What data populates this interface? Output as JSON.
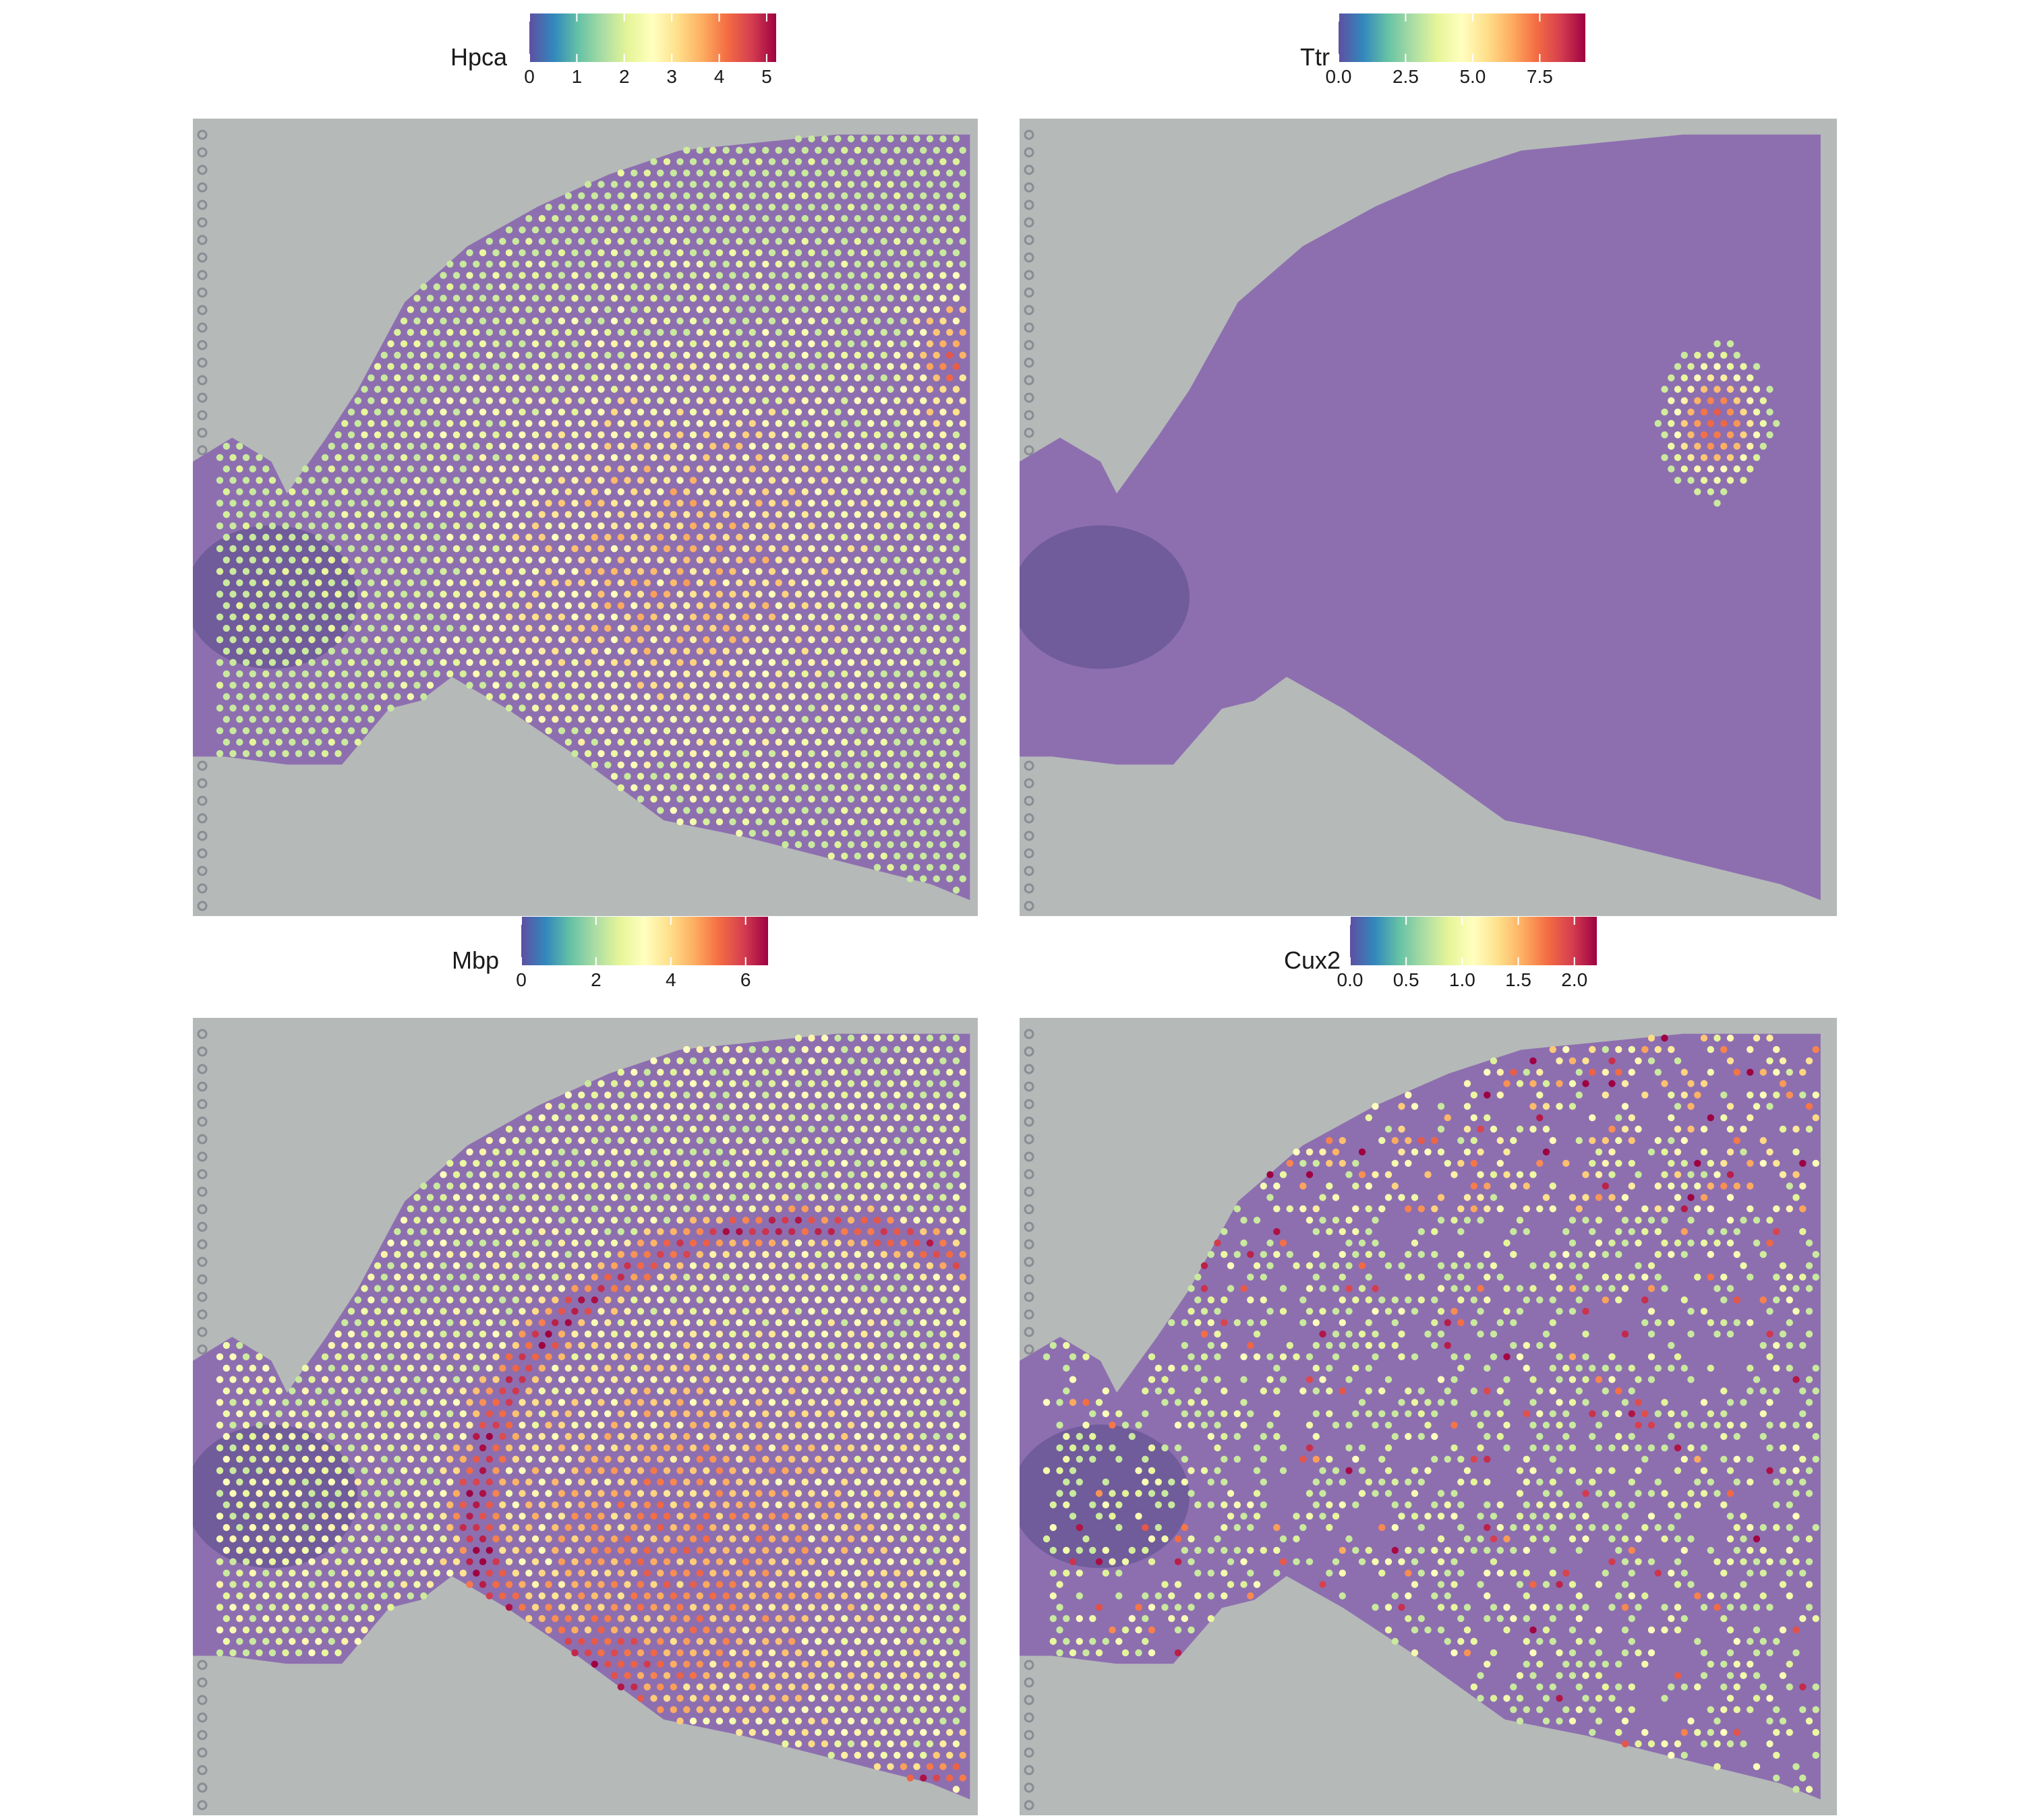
{
  "palette": [
    "#5E4FA2",
    "#3288BD",
    "#66C2A5",
    "#ABDDA4",
    "#E6F598",
    "#FFFFBF",
    "#FEE08B",
    "#FDAE61",
    "#F46D43",
    "#D53E4F",
    "#9E0142"
  ],
  "colors": {
    "slide": "#b5b9b8",
    "tissue": "#8d6fb0",
    "tissue_dark": "#5a4a8a",
    "fiducial": "#8a8c94"
  },
  "chart_data": [
    {
      "type": "spatial-scatter",
      "gene": "Hpca",
      "legend_title": "Hpca",
      "ticks": [
        0,
        1,
        2,
        3,
        4,
        5
      ],
      "tick_labels": [
        "0",
        "1",
        "2",
        "3",
        "4",
        "5"
      ],
      "range": [
        0,
        5.2
      ],
      "pattern": "Hippocampal / thalamic region shows high expression (orange), peak at dorsal edge"
    },
    {
      "type": "spatial-scatter",
      "gene": "Ttr",
      "legend_title": "Ttr",
      "ticks": [
        0,
        2.5,
        5,
        7.5
      ],
      "tick_labels": [
        "0.0",
        "2.5",
        "5.0",
        "7.5"
      ],
      "range": [
        0,
        9.2
      ],
      "pattern": "Restricted to choroid plexus near dorsal ventricle"
    },
    {
      "type": "spatial-scatter",
      "gene": "Mbp",
      "legend_title": "Mbp",
      "ticks": [
        0,
        2,
        4,
        6
      ],
      "tick_labels": [
        "0",
        "2",
        "4",
        "6"
      ],
      "range": [
        0,
        6.6
      ],
      "pattern": "White matter tracts (corpus callosum, fiber bundles) high"
    },
    {
      "type": "spatial-scatter",
      "gene": "Cux2",
      "legend_title": "Cux2",
      "ticks": [
        0,
        0.5,
        1,
        1.5,
        2
      ],
      "tick_labels": [
        "0.0",
        "0.5",
        "1.0",
        "1.5",
        "2.0"
      ],
      "range": [
        0,
        2.2
      ],
      "pattern": "Sparse, enriched in upper cortical layers along dorsal edge"
    }
  ]
}
